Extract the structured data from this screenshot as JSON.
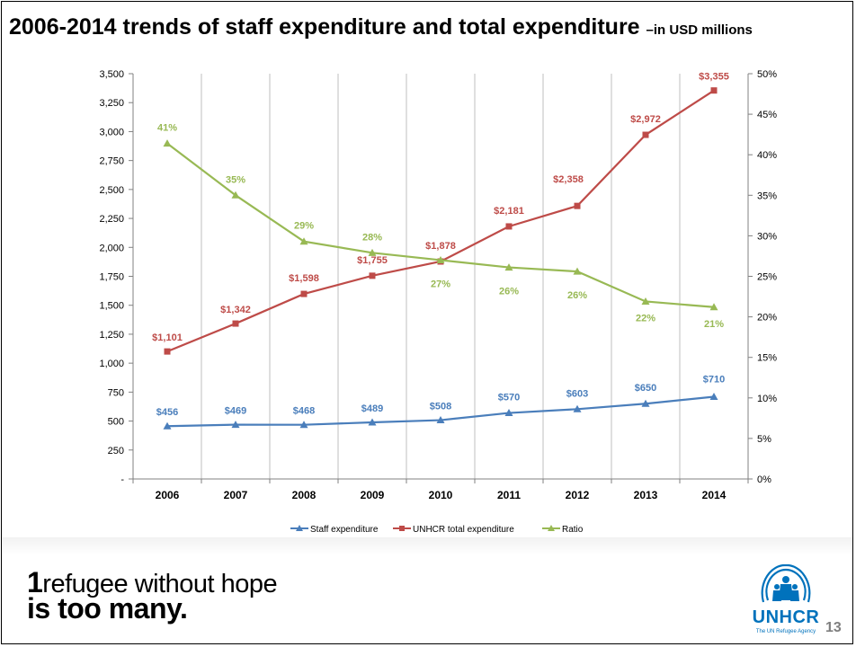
{
  "slide": {
    "title": "2006-2014 trends of staff expenditure and total expenditure",
    "title_suffix": "–in USD millions",
    "page_number": "13"
  },
  "footer": {
    "slogan_num": "1",
    "slogan_line1": "refugee without hope",
    "slogan_line2": "is too many.",
    "logo_text": "UNHCR",
    "logo_sub": "The UN Refugee Agency",
    "logo_icon": "family-shelter-icon"
  },
  "chart_data": {
    "type": "line",
    "categories": [
      "2006",
      "2007",
      "2008",
      "2009",
      "2010",
      "2011",
      "2012",
      "2013",
      "2014"
    ],
    "y_left": {
      "ylim": [
        0,
        3500
      ],
      "ticks": [
        0,
        250,
        500,
        750,
        1000,
        1250,
        1500,
        1750,
        2000,
        2250,
        2500,
        2750,
        3000,
        3250,
        3500
      ],
      "tick_labels": [
        "-",
        "250",
        "500",
        "750",
        "1,000",
        "1,250",
        "1,500",
        "1,750",
        "2,000",
        "2,250",
        "2,500",
        "2,750",
        "3,000",
        "3,250",
        "3,500"
      ]
    },
    "y_right": {
      "ylim": [
        0,
        50
      ],
      "ticks": [
        0,
        5,
        10,
        15,
        20,
        25,
        30,
        35,
        40,
        45,
        50
      ],
      "tick_labels": [
        "0%",
        "5%",
        "10%",
        "15%",
        "20%",
        "25%",
        "30%",
        "35%",
        "40%",
        "45%",
        "50%"
      ]
    },
    "vertical_grid": true,
    "legend_position": "bottom",
    "series": [
      {
        "name": "Staff expenditure",
        "axis": "left",
        "color": "#4a7ebb",
        "marker": "triangle",
        "values": [
          456,
          469,
          468,
          489,
          508,
          570,
          603,
          650,
          710
        ],
        "labels": [
          "$456",
          "$469",
          "$468",
          "$489",
          "$508",
          "$570",
          "$603",
          "$650",
          "$710"
        ]
      },
      {
        "name": "UNHCR total expenditure",
        "axis": "left",
        "color": "#be4b48",
        "marker": "square",
        "values": [
          1101,
          1342,
          1598,
          1755,
          1878,
          2181,
          2358,
          2972,
          3355
        ],
        "labels": [
          "$1,101",
          "$1,342",
          "$1,598",
          "$1,755",
          "$1,878",
          "$2,181",
          "$2,358",
          "$2,972",
          "$3,355"
        ]
      },
      {
        "name": "Ratio",
        "axis": "right",
        "color": "#98b954",
        "marker": "triangle",
        "values": [
          41.4,
          35.0,
          29.3,
          27.9,
          27.0,
          26.1,
          25.6,
          21.9,
          21.2
        ],
        "labels": [
          "41%",
          "35%",
          "29%",
          "28%",
          "27%",
          "26%",
          "26%",
          "22%",
          "21%"
        ]
      }
    ]
  }
}
